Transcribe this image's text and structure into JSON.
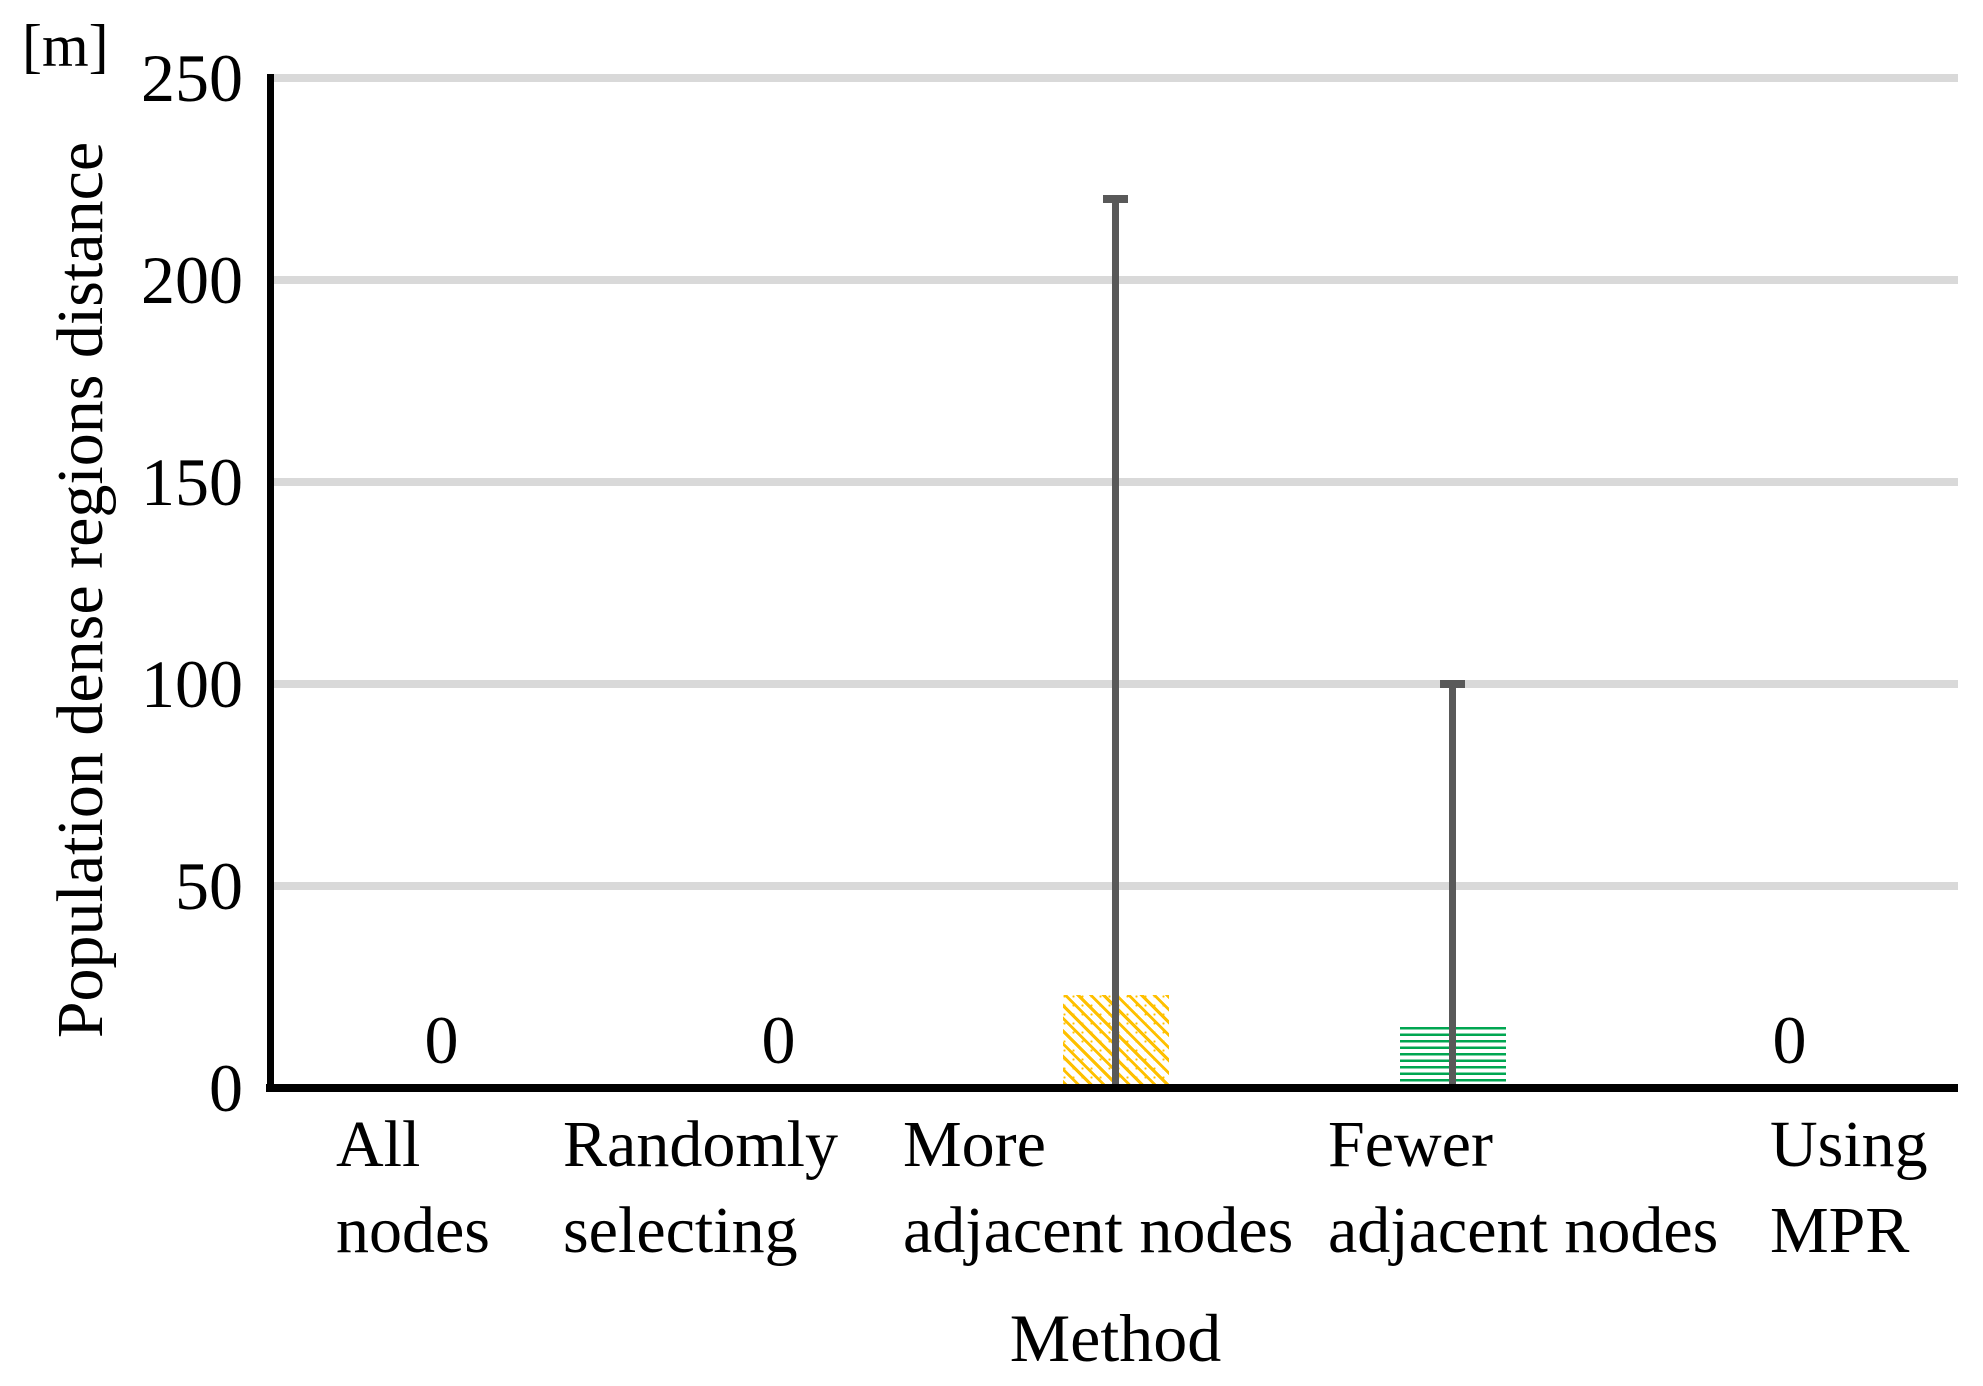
{
  "chart_data": {
    "type": "bar",
    "title": "",
    "unit_label": "[m]",
    "ylabel": "Population dense regions distance",
    "xlabel": "Method",
    "ylim": [
      0,
      250
    ],
    "yticks": [
      0,
      50,
      100,
      150,
      200,
      250
    ],
    "grid": true,
    "legend_position": "none",
    "categories": [
      {
        "label": "All nodes",
        "label_lines": [
          "All",
          "nodes"
        ],
        "value": 0,
        "error_high": null,
        "value_label": "0",
        "pattern": "none",
        "color": null
      },
      {
        "label": "Randomly selecting",
        "label_lines": [
          "Randomly",
          "selecting"
        ],
        "value": 0,
        "error_high": null,
        "value_label": "0",
        "pattern": "none",
        "color": null
      },
      {
        "label": "More adjacent nodes",
        "label_lines": [
          "More",
          "adjacent nodes"
        ],
        "value": 23,
        "error_high": 220,
        "value_label": null,
        "pattern": "diagonal-hatch",
        "color": "#FFC000"
      },
      {
        "label": "Fewer adjacent nodes",
        "label_lines": [
          "Fewer",
          "adjacent nodes"
        ],
        "value": 15,
        "error_high": 100,
        "value_label": null,
        "pattern": "horizontal-hatch",
        "color": "#00A651"
      },
      {
        "label": "Using MPR",
        "label_lines": [
          "Using",
          "MPR"
        ],
        "value": 0,
        "error_high": null,
        "value_label": "0",
        "pattern": "none",
        "color": null
      }
    ],
    "colors": {
      "error_bar": "#595959",
      "gridline": "#D9D9D9",
      "axis": "#000000",
      "text": "#000000"
    }
  }
}
